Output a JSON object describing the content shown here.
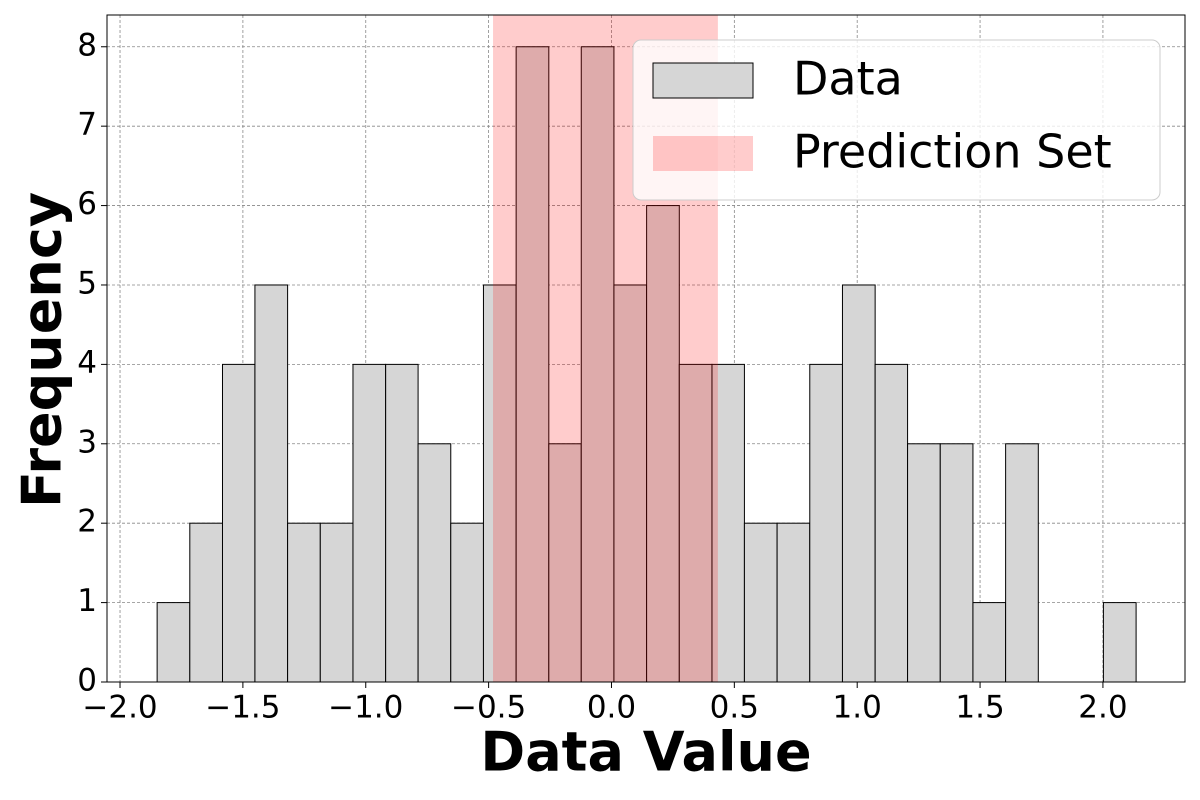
{
  "chart_data": {
    "type": "histogram",
    "xlabel": "Data Value",
    "ylabel": "Frequency",
    "bins": [
      -1.849,
      -1.716,
      -1.583,
      -1.451,
      -1.318,
      -1.185,
      -1.052,
      -0.919,
      -0.787,
      -0.654,
      -0.521,
      -0.388,
      -0.255,
      -0.123,
      0.01,
      0.143,
      0.276,
      0.409,
      0.541,
      0.674,
      0.807,
      0.94,
      1.073,
      1.205,
      1.338,
      1.471,
      1.604,
      1.737,
      1.869,
      2.002,
      2.135
    ],
    "series": [
      {
        "name": "Data",
        "color": "#d6d6d6",
        "edgecolor": "#000000",
        "values": [
          1,
          2,
          4,
          5,
          2,
          2,
          4,
          4,
          3,
          2,
          5,
          8,
          3,
          8,
          5,
          6,
          4,
          4,
          2,
          2,
          4,
          5,
          4,
          3,
          3,
          1,
          3,
          0,
          0,
          1
        ]
      }
    ],
    "span": {
      "name": "Prediction Set",
      "color": "#ff0000",
      "alpha": 0.2,
      "x": [
        -0.482,
        0.433
      ]
    },
    "xlim": [
      -2.053,
      2.334
    ],
    "ylim": [
      0,
      8.4
    ],
    "xticks": [
      {
        "value": -2.0,
        "label": "−2.0"
      },
      {
        "value": -1.5,
        "label": "−1.5"
      },
      {
        "value": -1.0,
        "label": "−1.0"
      },
      {
        "value": -0.5,
        "label": "−0.5"
      },
      {
        "value": 0.0,
        "label": "0.0"
      },
      {
        "value": 0.5,
        "label": "0.5"
      },
      {
        "value": 1.0,
        "label": "1.0"
      },
      {
        "value": 1.5,
        "label": "1.5"
      },
      {
        "value": 2.0,
        "label": "2.0"
      }
    ],
    "yticks": [
      0,
      1,
      2,
      3,
      4,
      5,
      6,
      7,
      8
    ],
    "grid": true,
    "legend": "upper right"
  }
}
